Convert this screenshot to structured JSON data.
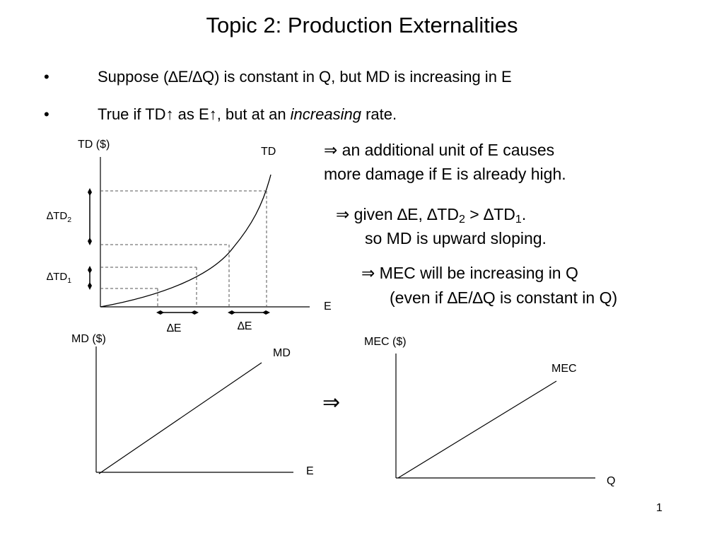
{
  "slide": {
    "title": "Topic 2: Production Externalities",
    "page_number": "1"
  },
  "bullets": [
    {
      "marker": "•",
      "text": "Suppose (∆E/∆Q) is constant in Q, but MD is increasing in E"
    },
    {
      "marker": "•",
      "pre": "True if TD↑ as E↑, but at an ",
      "emph": "increasing",
      "post": " rate."
    }
  ],
  "notes": {
    "implies1_line1": "⇒ an additional unit of E causes",
    "implies1_line2": "more damage if E is already high.",
    "implies2_a": "⇒ given ∆E, ∆TD",
    "implies2_sub1": "2",
    "implies2_b": " > ∆TD",
    "implies2_sub2": "1",
    "implies2_c": ".",
    "implies2_line2": "so MD is upward sloping.",
    "implies3_line1": "⇒ MEC will be increasing in Q",
    "implies3_line2": "(even if ∆E/∆Q is constant in Q)",
    "arrow_between_graphs": "⇒"
  },
  "td_graph": {
    "y_axis_label": "TD ($)",
    "x_axis_label": "E",
    "curve_label": "TD",
    "delta_td2_base": "∆TD",
    "delta_td2_sub": "2",
    "delta_td1_base": "∆TD",
    "delta_td1_sub": "1",
    "delta_e_left": "∆E",
    "delta_e_right": "∆E"
  },
  "md_graph": {
    "y_axis_label": "MD ($)",
    "x_axis_label": "E",
    "line_label": "MD"
  },
  "mec_graph": {
    "y_axis_label": "MEC ($)",
    "x_axis_label": "Q",
    "line_label": "MEC"
  }
}
